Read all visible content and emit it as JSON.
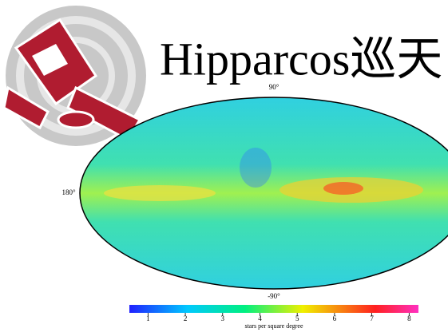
{
  "title": "Hipparcos巡天",
  "map": {
    "north_label": "90°",
    "south_label": "-90°",
    "west_label": "180°"
  },
  "colorbar": {
    "lim": [
      0.5,
      8.25
    ],
    "ticks": [
      1,
      2,
      3,
      4,
      5,
      6,
      7,
      8
    ],
    "label": "stars per square degree"
  }
}
